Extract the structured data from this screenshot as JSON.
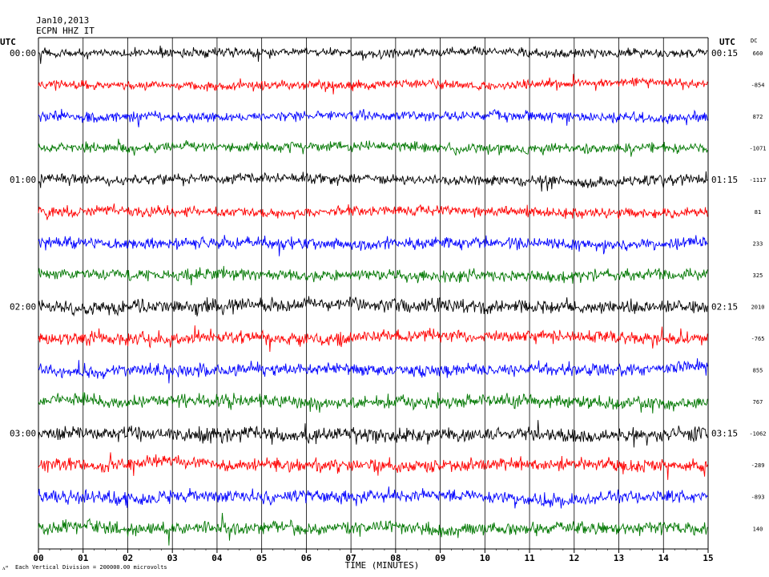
{
  "header": {
    "date": "Jan10,2013",
    "station": "ECPN HHZ IT"
  },
  "left_axis_title": "UTC",
  "right_axis_title": "UTC",
  "dc_title": "DC",
  "x_axis_title": "TIME (MINUTES)",
  "footer": {
    "mark": "ᴧᴹ",
    "scale_note": "Each Vertical Division = 200000.00 microvolts"
  },
  "colors": {
    "trace_cycle": [
      "#000000",
      "#ff0000",
      "#0000ff",
      "#007700"
    ],
    "gridline": "#000000"
  },
  "chart_data": {
    "type": "line",
    "title": "",
    "xlabel": "TIME (MINUTES)",
    "ylabel": "",
    "xlim": [
      0,
      15
    ],
    "x_ticks": [
      "00",
      "01",
      "02",
      "03",
      "04",
      "05",
      "06",
      "07",
      "08",
      "09",
      "10",
      "11",
      "12",
      "13",
      "14",
      "15"
    ],
    "trace_count": 16,
    "left_hour_labels": [
      {
        "trace": 0,
        "label": "00:00"
      },
      {
        "trace": 4,
        "label": "01:00"
      },
      {
        "trace": 8,
        "label": "02:00"
      },
      {
        "trace": 12,
        "label": "03:00"
      }
    ],
    "right_hour_labels": [
      {
        "trace": 0,
        "label": "00:15"
      },
      {
        "trace": 4,
        "label": "01:15"
      },
      {
        "trace": 8,
        "label": "02:15"
      },
      {
        "trace": 12,
        "label": "03:15"
      }
    ],
    "dc_offsets": [
      "660",
      "-854",
      "872",
      "-1071",
      "-1117",
      "81",
      "233",
      "325",
      "2010",
      "-765",
      "855",
      "767",
      "-1062",
      "-289",
      "-893",
      "140"
    ],
    "vertical_division_microvolts": 200000.0,
    "grid": true
  }
}
